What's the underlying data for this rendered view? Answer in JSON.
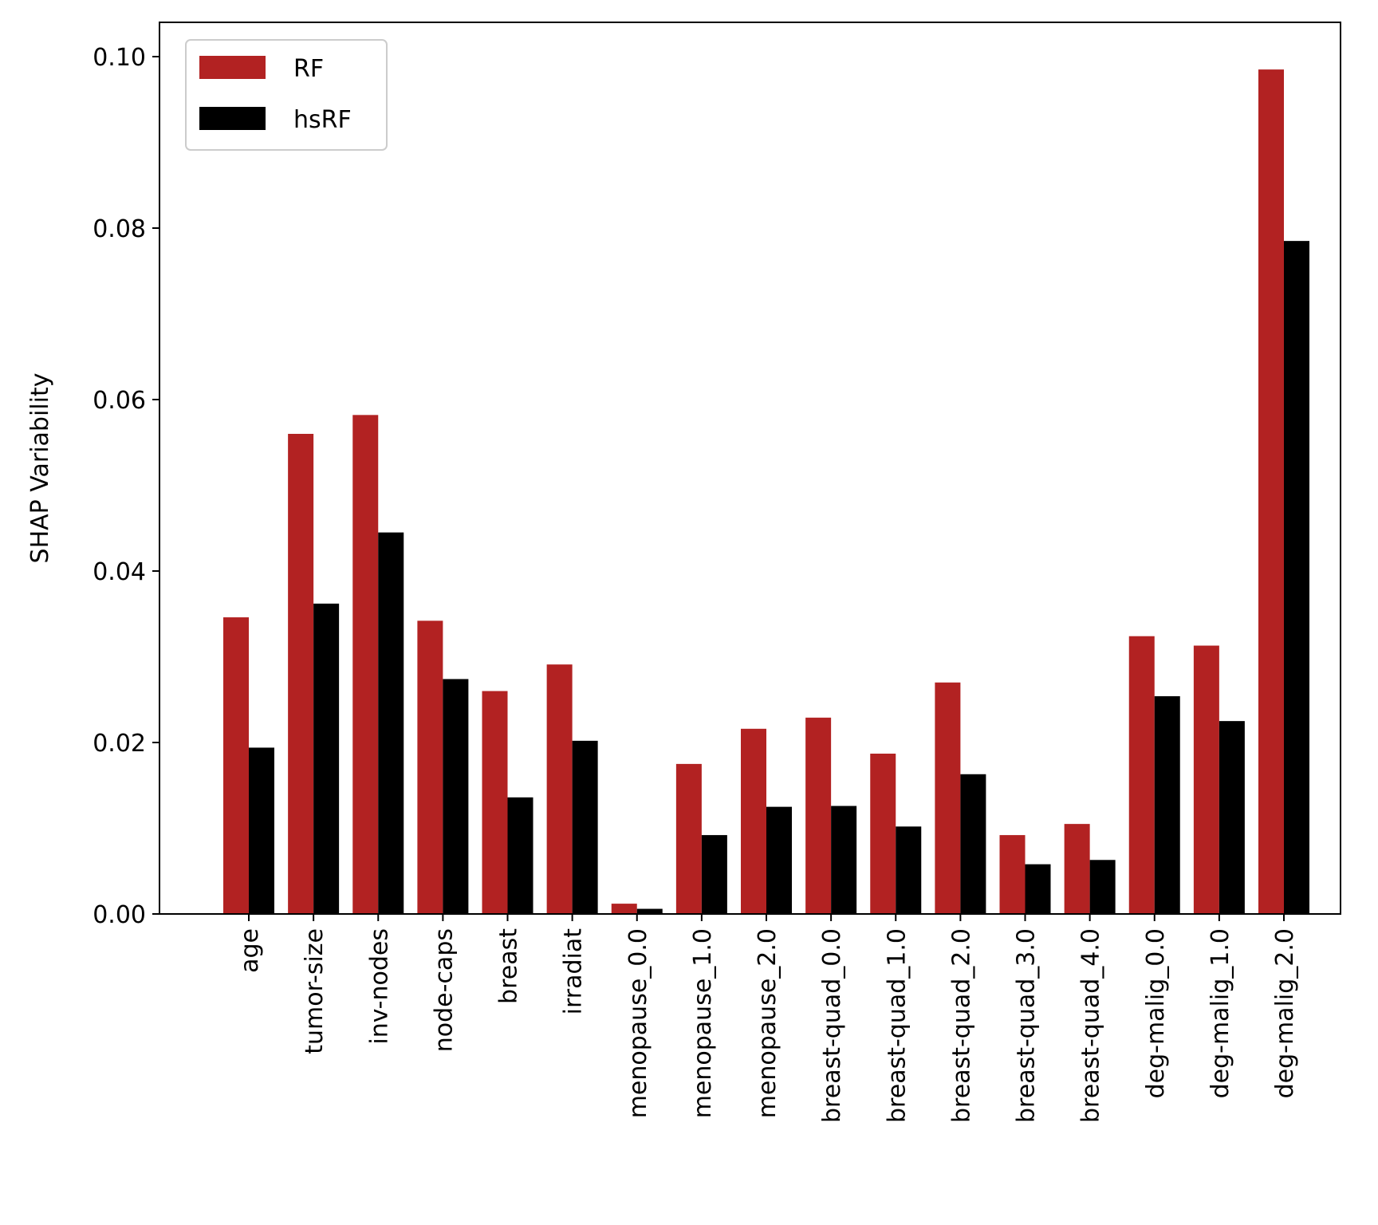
{
  "chart_data": {
    "type": "bar",
    "title": "",
    "xlabel": "",
    "ylabel": "SHAP Variability",
    "ylim": [
      0,
      0.104
    ],
    "yticks": [
      "0.00",
      "0.02",
      "0.04",
      "0.06",
      "0.08",
      "0.10"
    ],
    "ytick_values": [
      0,
      0.02,
      0.04,
      0.06,
      0.08,
      0.1
    ],
    "grid": false,
    "legend_position": "top-left",
    "categories": [
      "age",
      "tumor-size",
      "inv-nodes",
      "node-caps",
      "breast",
      "irradiat",
      "menopause_0.0",
      "menopause_1.0",
      "menopause_2.0",
      "breast-quad_0.0",
      "breast-quad_1.0",
      "breast-quad_2.0",
      "breast-quad_3.0",
      "breast-quad_4.0",
      "deg-malig_0.0",
      "deg-malig_1.0",
      "deg-malig_2.0"
    ],
    "series": [
      {
        "name": "RF",
        "color": "#b22222",
        "values": [
          0.0346,
          0.056,
          0.0582,
          0.0342,
          0.026,
          0.0291,
          0.0012,
          0.0175,
          0.0216,
          0.0229,
          0.0187,
          0.027,
          0.0092,
          0.0105,
          0.0324,
          0.0313,
          0.0985
        ]
      },
      {
        "name": "hsRF",
        "color": "#000000",
        "values": [
          0.0194,
          0.0362,
          0.0445,
          0.0274,
          0.0136,
          0.0202,
          0.0006,
          0.0092,
          0.0125,
          0.0126,
          0.0102,
          0.0163,
          0.0058,
          0.0063,
          0.0254,
          0.0225,
          0.0785
        ]
      }
    ]
  }
}
